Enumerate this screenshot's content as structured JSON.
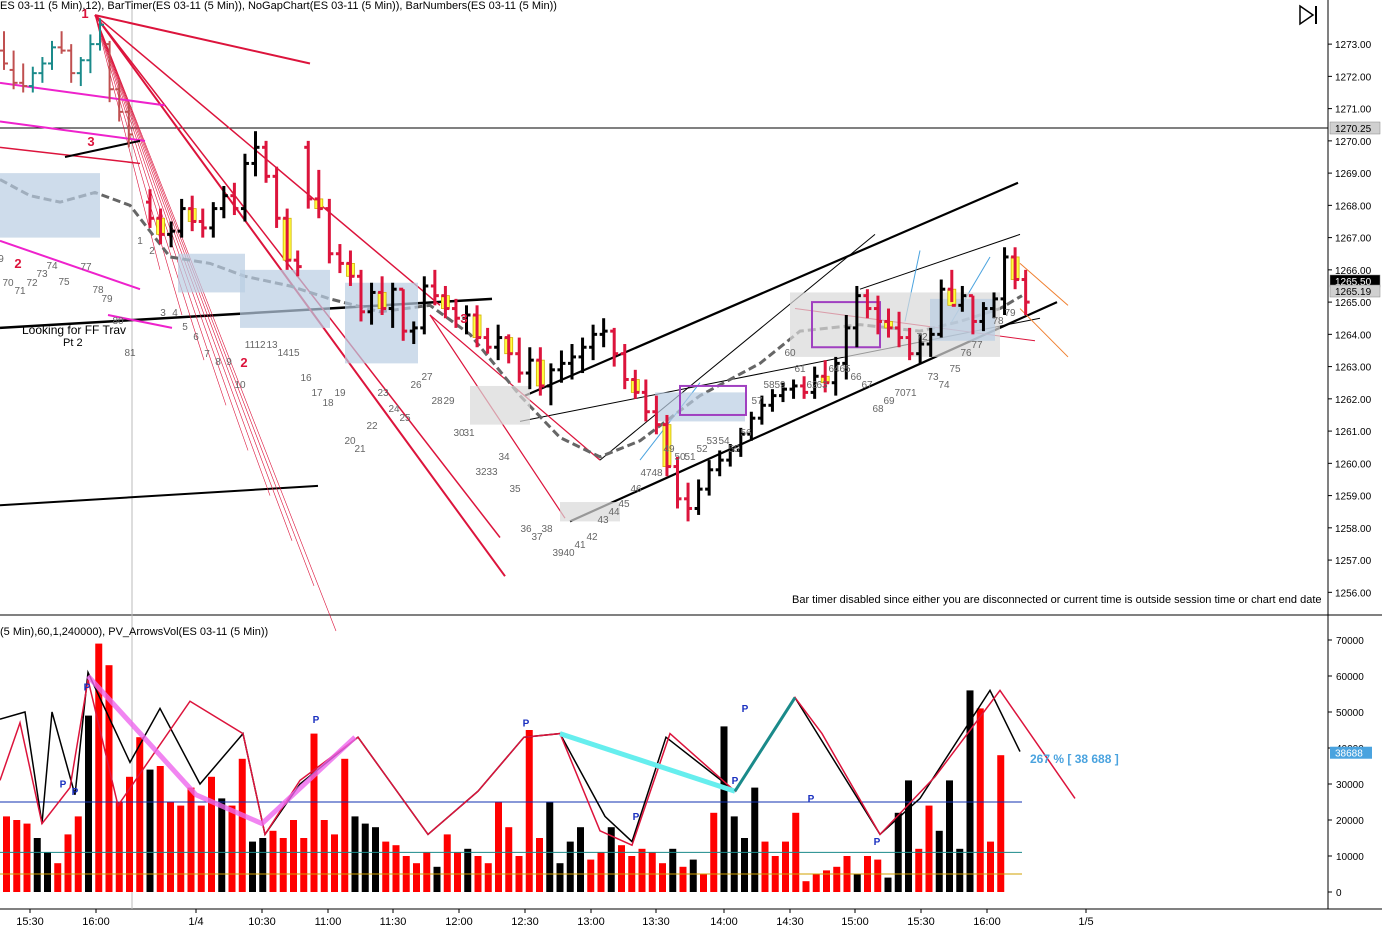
{
  "header": {
    "main": "ES 03-11 (5 Min),12), BarTimer(ES 03-11 (5 Min)), NoGapChart(ES 03-11 (5 Min)), BarNumbers(ES 03-11 (5 Min))",
    "lower": "(5 Min),60,1,240000), PV_ArrowsVol(ES 03-11 (5 Min))"
  },
  "notices": {
    "bar_timer": "Bar timer disabled since either you are disconnected or current time is outside session time or chart end date",
    "annotation_line1": "Looking for FF Trav",
    "annotation_line2": "Pt 2",
    "volume_pct": "267 % [ 38 688 ]"
  },
  "price_axis": {
    "ticks": [
      "1273.00",
      "1272.00",
      "1271.00",
      "1270.00",
      "1269.00",
      "1268.00",
      "1267.00",
      "1266.00",
      "1265.00",
      "1264.00",
      "1263.00",
      "1262.00",
      "1261.00",
      "1260.00",
      "1259.00",
      "1258.00",
      "1257.00",
      "1256.00"
    ],
    "tags": [
      {
        "label": "1270.25",
        "kind": "grey"
      },
      {
        "label": "1265.50",
        "kind": "black"
      },
      {
        "label": "1265.19",
        "kind": "grey"
      }
    ]
  },
  "volume_axis": {
    "ticks": [
      "70000",
      "60000",
      "50000",
      "40000",
      "30000",
      "20000",
      "10000",
      "0"
    ],
    "tag": "38688"
  },
  "time_axis": {
    "labels": [
      "15:30",
      "16:00",
      "1/4",
      "10:30",
      "11:00",
      "11:30",
      "12:00",
      "12:30",
      "13:00",
      "13:30",
      "14:00",
      "14:30",
      "15:00",
      "15:30",
      "16:00",
      "1/5"
    ]
  },
  "swing_labels": [
    "1",
    "3",
    "2",
    "2",
    "3"
  ],
  "bar_numbers": [
    "9",
    "70",
    "71",
    "72",
    "73",
    "74",
    "75",
    "77",
    "78",
    "79",
    "80",
    "81",
    "1",
    "2",
    "3",
    "4",
    "5",
    "6",
    "7",
    "8",
    "9",
    "10",
    "11",
    "12",
    "13",
    "14",
    "15",
    "16",
    "17",
    "18",
    "19",
    "20",
    "21",
    "22",
    "23",
    "24",
    "25",
    "26",
    "27",
    "28",
    "29",
    "30",
    "31",
    "32",
    "33",
    "34",
    "35",
    "36",
    "37",
    "38",
    "39",
    "40",
    "41",
    "42",
    "43",
    "44",
    "45",
    "46",
    "47",
    "48",
    "49",
    "50",
    "51",
    "52",
    "53",
    "54",
    "55",
    "56",
    "57",
    "58",
    "59",
    "60",
    "61",
    "62",
    "63",
    "64",
    "65",
    "66",
    "67",
    "68",
    "69",
    "70",
    "71",
    "72",
    "73",
    "74",
    "75",
    "76",
    "77",
    "78",
    "79",
    "80"
  ],
  "chart_data": {
    "type": "bar",
    "title": "",
    "price_range": [
      1255.7,
      1273.5
    ],
    "volume_range": [
      0,
      70000
    ],
    "candles": [
      [
        1273.4,
        1272.2,
        1272.8,
        1272.4
      ],
      [
        1272.8,
        1271.6,
        1272.2,
        1271.8
      ],
      [
        1272.4,
        1271.5,
        1271.8,
        1271.7
      ],
      [
        1272.3,
        1271.5,
        1271.7,
        1272.1
      ],
      [
        1272.6,
        1271.8,
        1272.1,
        1272.4
      ],
      [
        1273.1,
        1272.2,
        1272.4,
        1272.9
      ],
      [
        1273.4,
        1272.7,
        1272.9,
        1272.8
      ],
      [
        1273.0,
        1271.8,
        1272.8,
        1272.1
      ],
      [
        1272.6,
        1271.7,
        1272.1,
        1272.5
      ],
      [
        1273.3,
        1272.1,
        1272.5,
        1273.0
      ],
      [
        1273.8,
        1272.8,
        1273.0,
        1273.6
      ],
      [
        1273.1,
        1271.2,
        1273.0,
        1271.6
      ],
      [
        1271.9,
        1270.6,
        1271.6,
        1270.9
      ],
      [
        1271.2,
        1269.8,
        1270.9,
        1270.2
      ],
      [
        1268.5,
        1267.3,
        1268.1,
        1267.6
      ],
      [
        1267.9,
        1266.8,
        1267.6,
        1267.1
      ],
      [
        1267.5,
        1266.7,
        1267.1,
        1267.2
      ],
      [
        1268.2,
        1267.0,
        1267.2,
        1267.9
      ],
      [
        1268.3,
        1267.2,
        1267.9,
        1267.5
      ],
      [
        1267.9,
        1267.0,
        1267.5,
        1267.3
      ],
      [
        1268.1,
        1267.0,
        1267.3,
        1267.9
      ],
      [
        1268.6,
        1267.6,
        1267.9,
        1268.3
      ],
      [
        1268.7,
        1267.7,
        1268.3,
        1267.9
      ],
      [
        1269.6,
        1267.5,
        1267.9,
        1269.3
      ],
      [
        1270.3,
        1268.9,
        1269.3,
        1269.8
      ],
      [
        1270.0,
        1268.7,
        1269.8,
        1268.9
      ],
      [
        1269.2,
        1267.3,
        1268.9,
        1267.6
      ],
      [
        1267.9,
        1266.0,
        1267.6,
        1266.3
      ],
      [
        1266.6,
        1265.8,
        1266.3,
        1266.1
      ],
      [
        1270.0,
        1267.9,
        1269.8,
        1268.2
      ],
      [
        1269.1,
        1267.6,
        1268.2,
        1267.9
      ],
      [
        1268.2,
        1266.2,
        1267.9,
        1266.5
      ],
      [
        1266.8,
        1265.9,
        1266.5,
        1266.2
      ],
      [
        1266.6,
        1265.5,
        1266.2,
        1265.8
      ],
      [
        1266.0,
        1264.4,
        1265.8,
        1264.7
      ],
      [
        1265.6,
        1264.3,
        1264.7,
        1265.3
      ],
      [
        1265.8,
        1264.6,
        1265.3,
        1264.8
      ],
      [
        1265.6,
        1264.2,
        1264.8,
        1265.4
      ],
      [
        1265.4,
        1263.8,
        1265.4,
        1264.1
      ],
      [
        1264.4,
        1263.7,
        1264.1,
        1264.2
      ],
      [
        1265.8,
        1264.0,
        1264.2,
        1265.5
      ],
      [
        1266.0,
        1264.9,
        1265.5,
        1265.2
      ],
      [
        1265.5,
        1264.5,
        1265.2,
        1264.8
      ],
      [
        1265.1,
        1264.2,
        1264.8,
        1264.5
      ],
      [
        1264.9,
        1264.0,
        1264.5,
        1264.6
      ],
      [
        1264.9,
        1263.6,
        1264.6,
        1263.9
      ],
      [
        1264.2,
        1263.4,
        1263.9,
        1263.6
      ],
      [
        1264.3,
        1263.2,
        1263.6,
        1263.9
      ],
      [
        1264.0,
        1263.1,
        1263.9,
        1263.4
      ],
      [
        1263.9,
        1262.5,
        1263.4,
        1262.8
      ],
      [
        1263.6,
        1262.3,
        1262.8,
        1263.2
      ],
      [
        1263.6,
        1262.1,
        1263.2,
        1262.4
      ],
      [
        1263.1,
        1261.8,
        1262.4,
        1262.9
      ],
      [
        1263.5,
        1262.5,
        1262.9,
        1263.1
      ],
      [
        1263.7,
        1262.6,
        1263.1,
        1263.3
      ],
      [
        1263.9,
        1262.8,
        1263.3,
        1263.6
      ],
      [
        1264.3,
        1263.2,
        1263.6,
        1264.0
      ],
      [
        1264.5,
        1263.6,
        1264.0,
        1264.1
      ],
      [
        1264.2,
        1263.0,
        1264.1,
        1263.4
      ],
      [
        1263.7,
        1262.3,
        1263.4,
        1262.6
      ],
      [
        1262.9,
        1262.0,
        1262.6,
        1262.2
      ],
      [
        1262.6,
        1261.3,
        1262.2,
        1261.6
      ],
      [
        1262.1,
        1260.9,
        1261.6,
        1261.2
      ],
      [
        1261.5,
        1259.6,
        1261.2,
        1259.9
      ],
      [
        1260.2,
        1258.6,
        1259.9,
        1258.9
      ],
      [
        1259.4,
        1258.2,
        1258.9,
        1258.6
      ],
      [
        1259.5,
        1258.4,
        1258.6,
        1259.2
      ],
      [
        1260.1,
        1259.0,
        1259.2,
        1259.8
      ],
      [
        1260.4,
        1259.6,
        1259.8,
        1260.1
      ],
      [
        1260.6,
        1259.9,
        1260.1,
        1260.4
      ],
      [
        1261.1,
        1260.2,
        1260.4,
        1260.9
      ],
      [
        1261.6,
        1260.7,
        1260.9,
        1261.4
      ],
      [
        1262.1,
        1261.2,
        1261.4,
        1261.8
      ],
      [
        1262.3,
        1261.6,
        1261.8,
        1262.1
      ],
      [
        1262.5,
        1261.9,
        1262.1,
        1262.3
      ],
      [
        1262.6,
        1262.0,
        1262.3,
        1262.4
      ],
      [
        1262.7,
        1262.0,
        1262.4,
        1262.2
      ],
      [
        1263.0,
        1262.0,
        1262.2,
        1262.7
      ],
      [
        1263.2,
        1262.2,
        1262.7,
        1262.5
      ],
      [
        1263.3,
        1262.1,
        1262.5,
        1263.1
      ],
      [
        1264.6,
        1262.6,
        1263.1,
        1264.2
      ],
      [
        1265.5,
        1263.6,
        1264.2,
        1265.2
      ],
      [
        1265.4,
        1264.5,
        1265.2,
        1264.8
      ],
      [
        1265.2,
        1264.0,
        1264.8,
        1264.4
      ],
      [
        1264.8,
        1263.9,
        1264.4,
        1264.2
      ],
      [
        1264.7,
        1263.6,
        1264.2,
        1263.9
      ],
      [
        1264.2,
        1263.2,
        1263.9,
        1263.4
      ],
      [
        1264.0,
        1263.1,
        1263.4,
        1263.7
      ],
      [
        1264.2,
        1263.3,
        1263.7,
        1264.0
      ],
      [
        1265.7,
        1263.9,
        1264.0,
        1265.4
      ],
      [
        1266.0,
        1265.0,
        1265.4,
        1264.9
      ],
      [
        1265.5,
        1264.7,
        1264.9,
        1265.2
      ],
      [
        1265.2,
        1264.0,
        1265.2,
        1264.4
      ],
      [
        1265.0,
        1264.1,
        1264.4,
        1264.8
      ],
      [
        1265.3,
        1264.5,
        1264.8,
        1265.1
      ],
      [
        1266.7,
        1264.6,
        1265.1,
        1266.4
      ],
      [
        1266.7,
        1265.4,
        1266.4,
        1265.7
      ],
      [
        1266.0,
        1264.6,
        1265.7,
        1265.0
      ]
    ],
    "volume": [
      [
        21000,
        "red"
      ],
      [
        20000,
        "red"
      ],
      [
        19000,
        "red"
      ],
      [
        15000,
        "black"
      ],
      [
        11000,
        "black"
      ],
      [
        8000,
        "red"
      ],
      [
        16000,
        "red"
      ],
      [
        21000,
        "red"
      ],
      [
        49000,
        "black"
      ],
      [
        69000,
        "red"
      ],
      [
        63000,
        "red"
      ],
      [
        25000,
        "red"
      ],
      [
        32000,
        "red"
      ],
      [
        43000,
        "red"
      ],
      [
        34000,
        "black"
      ],
      [
        35000,
        "red"
      ],
      [
        25000,
        "red"
      ],
      [
        24000,
        "red"
      ],
      [
        29000,
        "red"
      ],
      [
        24000,
        "red"
      ],
      [
        32000,
        "red"
      ],
      [
        26000,
        "black"
      ],
      [
        24000,
        "red"
      ],
      [
        37000,
        "red"
      ],
      [
        14000,
        "black"
      ],
      [
        15000,
        "black"
      ],
      [
        17000,
        "red"
      ],
      [
        15000,
        "red"
      ],
      [
        20000,
        "red"
      ],
      [
        15000,
        "red"
      ],
      [
        44000,
        "red"
      ],
      [
        20000,
        "red"
      ],
      [
        16000,
        "red"
      ],
      [
        37000,
        "red"
      ],
      [
        21000,
        "black"
      ],
      [
        19000,
        "black"
      ],
      [
        18000,
        "black"
      ],
      [
        14000,
        "red"
      ],
      [
        13000,
        "red"
      ],
      [
        10000,
        "red"
      ],
      [
        8000,
        "red"
      ],
      [
        11000,
        "red"
      ],
      [
        7000,
        "black"
      ],
      [
        16000,
        "red"
      ],
      [
        11000,
        "red"
      ],
      [
        12000,
        "black"
      ],
      [
        10000,
        "red"
      ],
      [
        8000,
        "red"
      ],
      [
        25000,
        "red"
      ],
      [
        18000,
        "red"
      ],
      [
        10000,
        "red"
      ],
      [
        45000,
        "red"
      ],
      [
        15000,
        "red"
      ],
      [
        25000,
        "black"
      ],
      [
        8000,
        "black"
      ],
      [
        14000,
        "black"
      ],
      [
        18000,
        "black"
      ],
      [
        9000,
        "red"
      ],
      [
        11000,
        "red"
      ],
      [
        18000,
        "black"
      ],
      [
        13000,
        "red"
      ],
      [
        10000,
        "red"
      ],
      [
        12000,
        "red"
      ],
      [
        11000,
        "red"
      ],
      [
        8000,
        "red"
      ],
      [
        12000,
        "black"
      ],
      [
        7000,
        "red"
      ],
      [
        9000,
        "black"
      ],
      [
        5000,
        "red"
      ],
      [
        22000,
        "red"
      ],
      [
        46000,
        "black"
      ],
      [
        21000,
        "black"
      ],
      [
        15000,
        "black"
      ],
      [
        29000,
        "black"
      ],
      [
        14000,
        "red"
      ],
      [
        10000,
        "red"
      ],
      [
        14000,
        "red"
      ],
      [
        22000,
        "red"
      ],
      [
        3000,
        "red"
      ],
      [
        5000,
        "red"
      ],
      [
        6000,
        "red"
      ],
      [
        7000,
        "red"
      ],
      [
        10000,
        "red"
      ],
      [
        5000,
        "black"
      ],
      [
        10000,
        "red"
      ],
      [
        9000,
        "red"
      ],
      [
        4000,
        "black"
      ],
      [
        22000,
        "black"
      ],
      [
        31000,
        "black"
      ],
      [
        12000,
        "red"
      ],
      [
        24000,
        "red"
      ],
      [
        17000,
        "black"
      ],
      [
        31000,
        "black"
      ],
      [
        12000,
        "black"
      ],
      [
        56000,
        "black"
      ],
      [
        51000,
        "red"
      ],
      [
        14000,
        "red"
      ],
      [
        38000,
        "red"
      ]
    ],
    "volume_avg_lines": [
      25000,
      11000
    ],
    "xlabel": "",
    "ylabel": ""
  }
}
